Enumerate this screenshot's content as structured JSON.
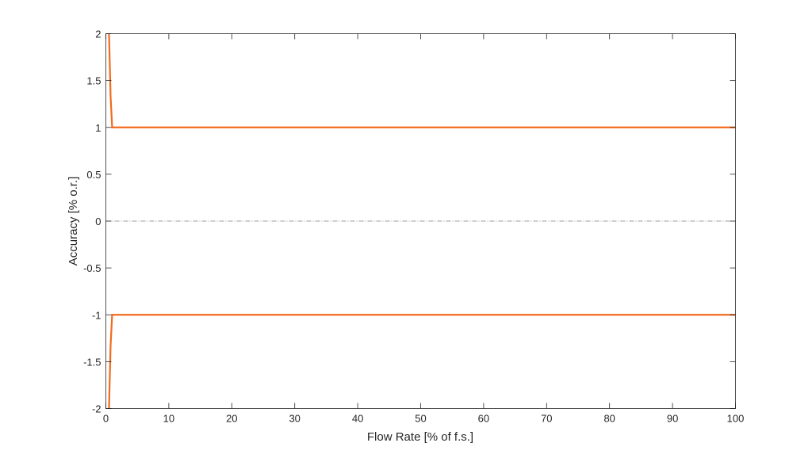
{
  "chart_data": {
    "type": "line",
    "title": "",
    "xlabel": "Flow Rate [% of f.s.]",
    "ylabel": "Accuracy [% o.r.]",
    "xlim": [
      0,
      100
    ],
    "ylim": [
      -2,
      2
    ],
    "xticks": [
      "0",
      "10",
      "20",
      "30",
      "40",
      "50",
      "60",
      "70",
      "80",
      "90",
      "100"
    ],
    "yticks": [
      "2",
      "1.5",
      "1",
      "0.5",
      "0",
      "-0.5",
      "-1",
      "-1.5",
      "-2"
    ],
    "grid": false,
    "series": [
      {
        "color": "#f26b1d",
        "x": [
          0.5,
          0.75,
          1,
          100
        ],
        "y": [
          2,
          1.33,
          1,
          1
        ]
      },
      {
        "color": "#f26b1d",
        "x": [
          0.5,
          0.75,
          1,
          100
        ],
        "y": [
          -2,
          -1.33,
          -1,
          -1
        ]
      }
    ],
    "reference_line": {
      "y": 0,
      "color": "#7f7f7f",
      "style": "dash-dot"
    }
  }
}
